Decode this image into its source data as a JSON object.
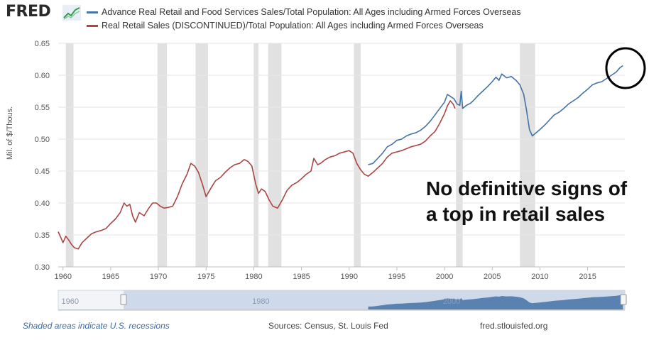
{
  "header": {
    "logo_text": "FRED",
    "logo_icon": "fred-graph-icon"
  },
  "chart_data": {
    "type": "line",
    "title": "",
    "xlabel": "",
    "ylabel": "Mil. of $/Thous.",
    "xlim": [
      1959.5,
      2018.9
    ],
    "ylim": [
      0.3,
      0.65
    ],
    "y_ticks": [
      "0.30",
      "0.35",
      "0.40",
      "0.45",
      "0.50",
      "0.55",
      "0.60",
      "0.65"
    ],
    "x_ticks": [
      "1960",
      "1965",
      "1970",
      "1975",
      "1980",
      "1985",
      "1990",
      "1995",
      "2000",
      "2005",
      "2010",
      "2015"
    ],
    "grid": true,
    "legend_position": "top-left",
    "recessions": [
      [
        1960.3,
        1961.1
      ],
      [
        1969.9,
        1970.9
      ],
      [
        1973.9,
        1975.2
      ],
      [
        1980.0,
        1980.5
      ],
      [
        1981.5,
        1982.9
      ],
      [
        1990.5,
        1991.2
      ],
      [
        2001.2,
        2001.9
      ],
      [
        2007.9,
        2009.5
      ]
    ],
    "series": [
      {
        "name": "Advance Real Retail and Food Services Sales/Total Population: All Ages including Armed Forces Overseas",
        "color": "#4572a7",
        "x": [
          1992.0,
          1992.5,
          1993.0,
          1993.5,
          1994.0,
          1994.5,
          1995.0,
          1995.5,
          1996.0,
          1996.5,
          1997.0,
          1997.5,
          1998.0,
          1998.5,
          1999.0,
          1999.5,
          2000.0,
          2000.3,
          2000.6,
          2001.0,
          2001.3,
          2001.6,
          2001.75,
          2001.9,
          2002.3,
          2002.7,
          2003.0,
          2003.5,
          2004.0,
          2004.5,
          2005.0,
          2005.4,
          2005.7,
          2006.0,
          2006.5,
          2007.0,
          2007.5,
          2007.9,
          2008.3,
          2008.6,
          2008.9,
          2009.2,
          2009.6,
          2010.0,
          2010.5,
          2011.0,
          2011.5,
          2012.0,
          2012.5,
          2013.0,
          2013.5,
          2014.0,
          2014.5,
          2015.0,
          2015.5,
          2016.0,
          2016.5,
          2017.0,
          2017.5,
          2018.0,
          2018.4,
          2018.7
        ],
        "values": [
          0.46,
          0.462,
          0.47,
          0.478,
          0.488,
          0.492,
          0.498,
          0.5,
          0.505,
          0.508,
          0.51,
          0.514,
          0.52,
          0.528,
          0.538,
          0.548,
          0.558,
          0.57,
          0.567,
          0.563,
          0.555,
          0.553,
          0.575,
          0.548,
          0.553,
          0.556,
          0.56,
          0.568,
          0.575,
          0.582,
          0.59,
          0.597,
          0.592,
          0.602,
          0.596,
          0.598,
          0.592,
          0.585,
          0.57,
          0.545,
          0.515,
          0.505,
          0.51,
          0.515,
          0.522,
          0.53,
          0.538,
          0.542,
          0.548,
          0.555,
          0.56,
          0.565,
          0.572,
          0.578,
          0.585,
          0.588,
          0.59,
          0.595,
          0.6,
          0.605,
          0.612,
          0.615
        ]
      },
      {
        "name": "Real Retail Sales (DISCONTINUED)/Total Population: All Ages including Armed Forces Overseas",
        "color": "#aa4643",
        "x": [
          1959.5,
          1959.8,
          1960.0,
          1960.3,
          1960.6,
          1960.9,
          1961.2,
          1961.6,
          1962.0,
          1962.5,
          1963.0,
          1963.5,
          1964.0,
          1964.5,
          1965.0,
          1965.5,
          1966.0,
          1966.4,
          1966.7,
          1967.0,
          1967.3,
          1967.6,
          1968.0,
          1968.5,
          1969.0,
          1969.4,
          1969.8,
          1970.2,
          1970.6,
          1971.0,
          1971.5,
          1972.0,
          1972.5,
          1973.0,
          1973.4,
          1973.8,
          1974.2,
          1974.6,
          1975.0,
          1975.3,
          1975.7,
          1976.0,
          1976.5,
          1977.0,
          1977.5,
          1978.0,
          1978.5,
          1979.0,
          1979.4,
          1979.8,
          1980.2,
          1980.5,
          1980.8,
          1981.2,
          1981.6,
          1982.0,
          1982.5,
          1983.0,
          1983.5,
          1984.0,
          1984.5,
          1985.0,
          1985.5,
          1986.0,
          1986.3,
          1986.7,
          1987.0,
          1987.5,
          1988.0,
          1988.5,
          1989.0,
          1989.5,
          1990.0,
          1990.4,
          1990.8,
          1991.2,
          1991.6,
          1992.0,
          1992.5,
          1993.0,
          1993.5,
          1994.0,
          1994.5,
          1995.0,
          1995.5,
          1996.0,
          1996.5,
          1997.0,
          1997.5,
          1998.0,
          1998.5,
          1999.0,
          1999.5,
          2000.0,
          2000.3,
          2000.6,
          2000.9,
          2001.1
        ],
        "values": [
          0.355,
          0.345,
          0.338,
          0.348,
          0.342,
          0.335,
          0.33,
          0.328,
          0.338,
          0.345,
          0.352,
          0.355,
          0.357,
          0.36,
          0.368,
          0.375,
          0.385,
          0.4,
          0.395,
          0.398,
          0.38,
          0.37,
          0.385,
          0.38,
          0.392,
          0.4,
          0.4,
          0.395,
          0.392,
          0.393,
          0.395,
          0.41,
          0.43,
          0.445,
          0.462,
          0.458,
          0.448,
          0.43,
          0.41,
          0.418,
          0.428,
          0.435,
          0.44,
          0.448,
          0.455,
          0.46,
          0.462,
          0.468,
          0.465,
          0.458,
          0.43,
          0.415,
          0.422,
          0.418,
          0.405,
          0.395,
          0.392,
          0.405,
          0.42,
          0.428,
          0.432,
          0.438,
          0.445,
          0.45,
          0.47,
          0.46,
          0.462,
          0.468,
          0.472,
          0.474,
          0.478,
          0.48,
          0.482,
          0.478,
          0.462,
          0.452,
          0.445,
          0.442,
          0.448,
          0.455,
          0.462,
          0.472,
          0.478,
          0.48,
          0.482,
          0.485,
          0.488,
          0.49,
          0.492,
          0.497,
          0.505,
          0.512,
          0.525,
          0.54,
          0.552,
          0.56,
          0.555,
          0.548
        ]
      }
    ],
    "navigator_ticks": [
      "1960",
      "1980",
      "2000"
    ]
  },
  "annotation": {
    "line1": "No definitive signs of",
    "line2": "a top in retail sales"
  },
  "footer": {
    "recession_note": "Shaded areas indicate U.S. recessions",
    "sources": "Sources: Census, St. Louis Fed",
    "url": "fred.stlouisfed.org"
  }
}
